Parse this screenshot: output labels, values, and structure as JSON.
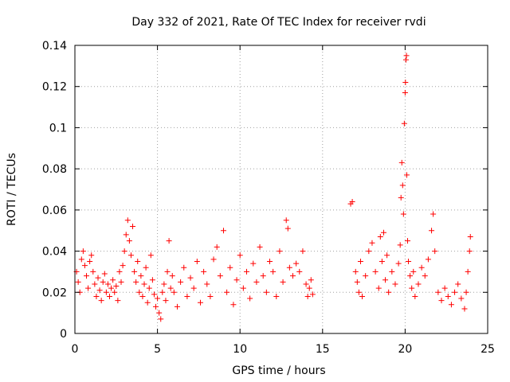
{
  "chart_data": {
    "type": "scatter",
    "title": "Day 332 of 2021, Rate Of TEC Index for receiver rvdi",
    "xlabel": "GPS time / hours",
    "ylabel": "ROTI / TECUs",
    "xlim": [
      0,
      25
    ],
    "ylim": [
      0,
      0.14
    ],
    "x_ticks": [
      0,
      5,
      10,
      15,
      20,
      25
    ],
    "x_tick_labels": [
      "0",
      "5",
      "10",
      "15",
      "20",
      "25"
    ],
    "y_ticks": [
      0,
      0.02,
      0.04,
      0.06,
      0.08,
      0.1,
      0.12,
      0.14
    ],
    "y_tick_labels": [
      "0",
      "0.02",
      "0.04",
      "0.06",
      "0.08",
      "0.1",
      "0.12",
      "0.14"
    ],
    "grid": true,
    "marker": "+",
    "color": "#ff0000",
    "series": [
      {
        "name": "ROTI",
        "points": [
          [
            0.1,
            0.03
          ],
          [
            0.2,
            0.025
          ],
          [
            0.3,
            0.02
          ],
          [
            0.4,
            0.036
          ],
          [
            0.5,
            0.04
          ],
          [
            0.6,
            0.033
          ],
          [
            0.7,
            0.028
          ],
          [
            0.8,
            0.022
          ],
          [
            0.9,
            0.035
          ],
          [
            1.0,
            0.038
          ],
          [
            1.1,
            0.03
          ],
          [
            1.2,
            0.024
          ],
          [
            1.3,
            0.018
          ],
          [
            1.4,
            0.027
          ],
          [
            1.5,
            0.021
          ],
          [
            1.6,
            0.016
          ],
          [
            1.7,
            0.025
          ],
          [
            1.8,
            0.029
          ],
          [
            1.9,
            0.02
          ],
          [
            2.0,
            0.024
          ],
          [
            2.1,
            0.018
          ],
          [
            2.2,
            0.022
          ],
          [
            2.3,
            0.026
          ],
          [
            2.4,
            0.02
          ],
          [
            2.5,
            0.023
          ],
          [
            2.6,
            0.016
          ],
          [
            2.7,
            0.03
          ],
          [
            2.8,
            0.025
          ],
          [
            2.9,
            0.033
          ],
          [
            3.0,
            0.04
          ],
          [
            3.1,
            0.048
          ],
          [
            3.2,
            0.055
          ],
          [
            3.3,
            0.045
          ],
          [
            3.4,
            0.038
          ],
          [
            3.5,
            0.052
          ],
          [
            3.6,
            0.03
          ],
          [
            3.7,
            0.025
          ],
          [
            3.8,
            0.035
          ],
          [
            3.9,
            0.02
          ],
          [
            4.0,
            0.028
          ],
          [
            4.1,
            0.018
          ],
          [
            4.2,
            0.024
          ],
          [
            4.3,
            0.032
          ],
          [
            4.4,
            0.015
          ],
          [
            4.5,
            0.022
          ],
          [
            4.6,
            0.038
          ],
          [
            4.7,
            0.026
          ],
          [
            4.8,
            0.019
          ],
          [
            4.9,
            0.013
          ],
          [
            5.0,
            0.017
          ],
          [
            5.1,
            0.01
          ],
          [
            5.2,
            0.007
          ],
          [
            5.3,
            0.02
          ],
          [
            5.4,
            0.024
          ],
          [
            5.5,
            0.016
          ],
          [
            5.6,
            0.03
          ],
          [
            5.7,
            0.045
          ],
          [
            5.8,
            0.022
          ],
          [
            5.9,
            0.028
          ],
          [
            6.0,
            0.02
          ],
          [
            6.2,
            0.013
          ],
          [
            6.4,
            0.025
          ],
          [
            6.6,
            0.032
          ],
          [
            6.8,
            0.018
          ],
          [
            7.0,
            0.027
          ],
          [
            7.2,
            0.022
          ],
          [
            7.4,
            0.035
          ],
          [
            7.6,
            0.015
          ],
          [
            7.8,
            0.03
          ],
          [
            8.0,
            0.024
          ],
          [
            8.2,
            0.018
          ],
          [
            8.4,
            0.036
          ],
          [
            8.6,
            0.042
          ],
          [
            8.8,
            0.028
          ],
          [
            9.0,
            0.05
          ],
          [
            9.2,
            0.02
          ],
          [
            9.4,
            0.032
          ],
          [
            9.6,
            0.014
          ],
          [
            9.8,
            0.026
          ],
          [
            10.0,
            0.038
          ],
          [
            10.2,
            0.022
          ],
          [
            10.4,
            0.03
          ],
          [
            10.6,
            0.017
          ],
          [
            10.8,
            0.034
          ],
          [
            11.0,
            0.025
          ],
          [
            11.2,
            0.042
          ],
          [
            11.4,
            0.028
          ],
          [
            11.6,
            0.02
          ],
          [
            11.8,
            0.035
          ],
          [
            12.0,
            0.03
          ],
          [
            12.2,
            0.018
          ],
          [
            12.4,
            0.04
          ],
          [
            12.6,
            0.025
          ],
          [
            12.8,
            0.055
          ],
          [
            12.9,
            0.051
          ],
          [
            13.0,
            0.032
          ],
          [
            13.2,
            0.028
          ],
          [
            13.4,
            0.034
          ],
          [
            13.6,
            0.03
          ],
          [
            13.8,
            0.04
          ],
          [
            14.0,
            0.024
          ],
          [
            14.1,
            0.018
          ],
          [
            14.2,
            0.022
          ],
          [
            14.3,
            0.026
          ],
          [
            14.4,
            0.019
          ],
          [
            16.7,
            0.063
          ],
          [
            16.8,
            0.064
          ],
          [
            17.0,
            0.03
          ],
          [
            17.1,
            0.025
          ],
          [
            17.2,
            0.02
          ],
          [
            17.3,
            0.035
          ],
          [
            17.4,
            0.018
          ],
          [
            17.6,
            0.028
          ],
          [
            17.8,
            0.04
          ],
          [
            18.0,
            0.044
          ],
          [
            18.2,
            0.03
          ],
          [
            18.4,
            0.022
          ],
          [
            18.5,
            0.047
          ],
          [
            18.6,
            0.035
          ],
          [
            18.7,
            0.049
          ],
          [
            18.8,
            0.026
          ],
          [
            18.9,
            0.038
          ],
          [
            19.0,
            0.02
          ],
          [
            19.2,
            0.03
          ],
          [
            19.4,
            0.024
          ],
          [
            19.6,
            0.034
          ],
          [
            19.7,
            0.043
          ],
          [
            19.75,
            0.066
          ],
          [
            19.8,
            0.083
          ],
          [
            19.85,
            0.072
          ],
          [
            19.9,
            0.058
          ],
          [
            19.95,
            0.102
          ],
          [
            20.0,
            0.117
          ],
          [
            20.02,
            0.122
          ],
          [
            20.05,
            0.133
          ],
          [
            20.08,
            0.135
          ],
          [
            20.1,
            0.077
          ],
          [
            20.15,
            0.045
          ],
          [
            20.2,
            0.035
          ],
          [
            20.3,
            0.028
          ],
          [
            20.4,
            0.022
          ],
          [
            20.5,
            0.03
          ],
          [
            20.6,
            0.018
          ],
          [
            20.8,
            0.024
          ],
          [
            21.0,
            0.032
          ],
          [
            21.2,
            0.028
          ],
          [
            21.4,
            0.036
          ],
          [
            21.6,
            0.05
          ],
          [
            21.7,
            0.058
          ],
          [
            21.8,
            0.04
          ],
          [
            22.0,
            0.02
          ],
          [
            22.2,
            0.016
          ],
          [
            22.4,
            0.022
          ],
          [
            22.6,
            0.018
          ],
          [
            22.8,
            0.014
          ],
          [
            23.0,
            0.02
          ],
          [
            23.2,
            0.024
          ],
          [
            23.4,
            0.017
          ],
          [
            23.6,
            0.012
          ],
          [
            23.7,
            0.02
          ],
          [
            23.8,
            0.03
          ],
          [
            23.9,
            0.04
          ],
          [
            23.95,
            0.047
          ]
        ]
      }
    ]
  }
}
